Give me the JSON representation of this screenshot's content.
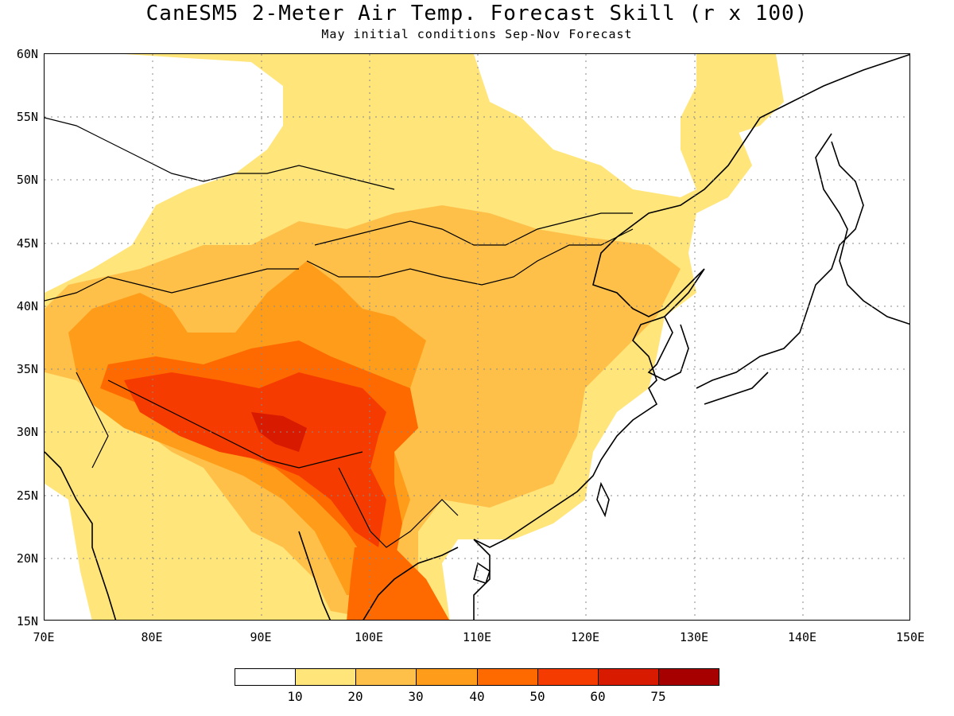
{
  "title": "CanESM5 2-Meter Air Temp. Forecast Skill (r x 100)",
  "subtitle": "May initial conditions  Sep-Nov Forecast",
  "map": {
    "lat_labels": [
      "60N",
      "55N",
      "50N",
      "45N",
      "40N",
      "35N",
      "30N",
      "25N",
      "20N",
      "15N"
    ],
    "lon_labels": [
      "70E",
      "80E",
      "90E",
      "100E",
      "110E",
      "120E",
      "130E",
      "140E",
      "150E"
    ],
    "lat_range": [
      15,
      60
    ],
    "lon_range": [
      70,
      150
    ],
    "gridlines": "dotted"
  },
  "colorbar": {
    "colors": [
      "#ffffff",
      "#ffe57a",
      "#ffc04a",
      "#ff9d1a",
      "#ff6a00",
      "#f53b00",
      "#d81a00",
      "#a60000"
    ],
    "labels": [
      "10",
      "20",
      "30",
      "40",
      "50",
      "60",
      "75"
    ]
  }
}
